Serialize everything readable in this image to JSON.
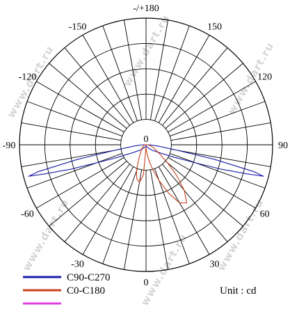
{
  "chart_data": {
    "type": "polar",
    "radial_max": 1,
    "ring_count": 5,
    "spoke_step_deg": 10,
    "angle_labels": [
      {
        "deg": 0,
        "text": "0"
      },
      {
        "deg": 30,
        "text": "30"
      },
      {
        "deg": 60,
        "text": "60"
      },
      {
        "deg": 90,
        "text": "90"
      },
      {
        "deg": 120,
        "text": "120"
      },
      {
        "deg": 150,
        "text": "150"
      },
      {
        "deg": 180,
        "text": "-/+180"
      },
      {
        "deg": -150,
        "text": "-150"
      },
      {
        "deg": -120,
        "text": "-120"
      },
      {
        "deg": -90,
        "text": "-90"
      },
      {
        "deg": -60,
        "text": "-60"
      },
      {
        "deg": -30,
        "text": "-30"
      }
    ],
    "center_label": "0",
    "series": [
      {
        "name": "C90-C270",
        "color": "#1a1aa8",
        "points": [
          [
            0,
            0.005
          ],
          [
            10,
            0.01
          ],
          [
            20,
            0.015
          ],
          [
            30,
            0.025
          ],
          [
            40,
            0.04
          ],
          [
            50,
            0.07
          ],
          [
            60,
            0.13
          ],
          [
            66,
            0.24
          ],
          [
            70,
            0.42
          ],
          [
            72,
            0.62
          ],
          [
            74,
            0.84
          ],
          [
            75,
            0.96
          ],
          [
            76,
            0.88
          ],
          [
            78,
            0.55
          ],
          [
            80,
            0.25
          ],
          [
            84,
            0.09
          ],
          [
            90,
            0.03
          ],
          [
            -90,
            0.03
          ],
          [
            -84,
            0.09
          ],
          [
            -80,
            0.25
          ],
          [
            -78,
            0.55
          ],
          [
            -76,
            0.88
          ],
          [
            -75,
            0.96
          ],
          [
            -74,
            0.84
          ],
          [
            -72,
            0.62
          ],
          [
            -70,
            0.42
          ],
          [
            -66,
            0.24
          ],
          [
            -60,
            0.13
          ],
          [
            -50,
            0.07
          ],
          [
            -40,
            0.04
          ],
          [
            -30,
            0.025
          ],
          [
            -20,
            0.015
          ],
          [
            -10,
            0.01
          ],
          [
            0,
            0.005
          ]
        ]
      },
      {
        "name": "C0-C180",
        "color": "#c8401c",
        "points": [
          [
            0,
            0.02
          ],
          [
            5,
            0.06
          ],
          [
            10,
            0.12
          ],
          [
            15,
            0.2
          ],
          [
            20,
            0.3
          ],
          [
            25,
            0.42
          ],
          [
            30,
            0.53
          ],
          [
            35,
            0.56
          ],
          [
            40,
            0.47
          ],
          [
            45,
            0.34
          ],
          [
            50,
            0.22
          ],
          [
            55,
            0.14
          ],
          [
            60,
            0.1
          ],
          [
            70,
            0.06
          ],
          [
            80,
            0.03
          ],
          [
            90,
            0.01
          ],
          [
            -90,
            0.01
          ],
          [
            -70,
            0.02
          ],
          [
            -50,
            0.04
          ],
          [
            -40,
            0.06
          ],
          [
            -30,
            0.1
          ],
          [
            -25,
            0.15
          ],
          [
            -20,
            0.22
          ],
          [
            -15,
            0.28
          ],
          [
            -10,
            0.3
          ],
          [
            -5,
            0.24
          ],
          [
            0,
            0.02
          ]
        ]
      },
      {
        "name": "",
        "color": "#e040e0",
        "points": []
      }
    ],
    "unit_label": "Unit : cd"
  },
  "legend": {
    "items": [
      {
        "label": "C90-C270",
        "color": "#1a1aa8"
      },
      {
        "label": "C0-C180",
        "color": "#c8401c"
      },
      {
        "label": "",
        "color": "#e040e0"
      }
    ]
  },
  "watermark": {
    "text": "www.dart.ru"
  }
}
